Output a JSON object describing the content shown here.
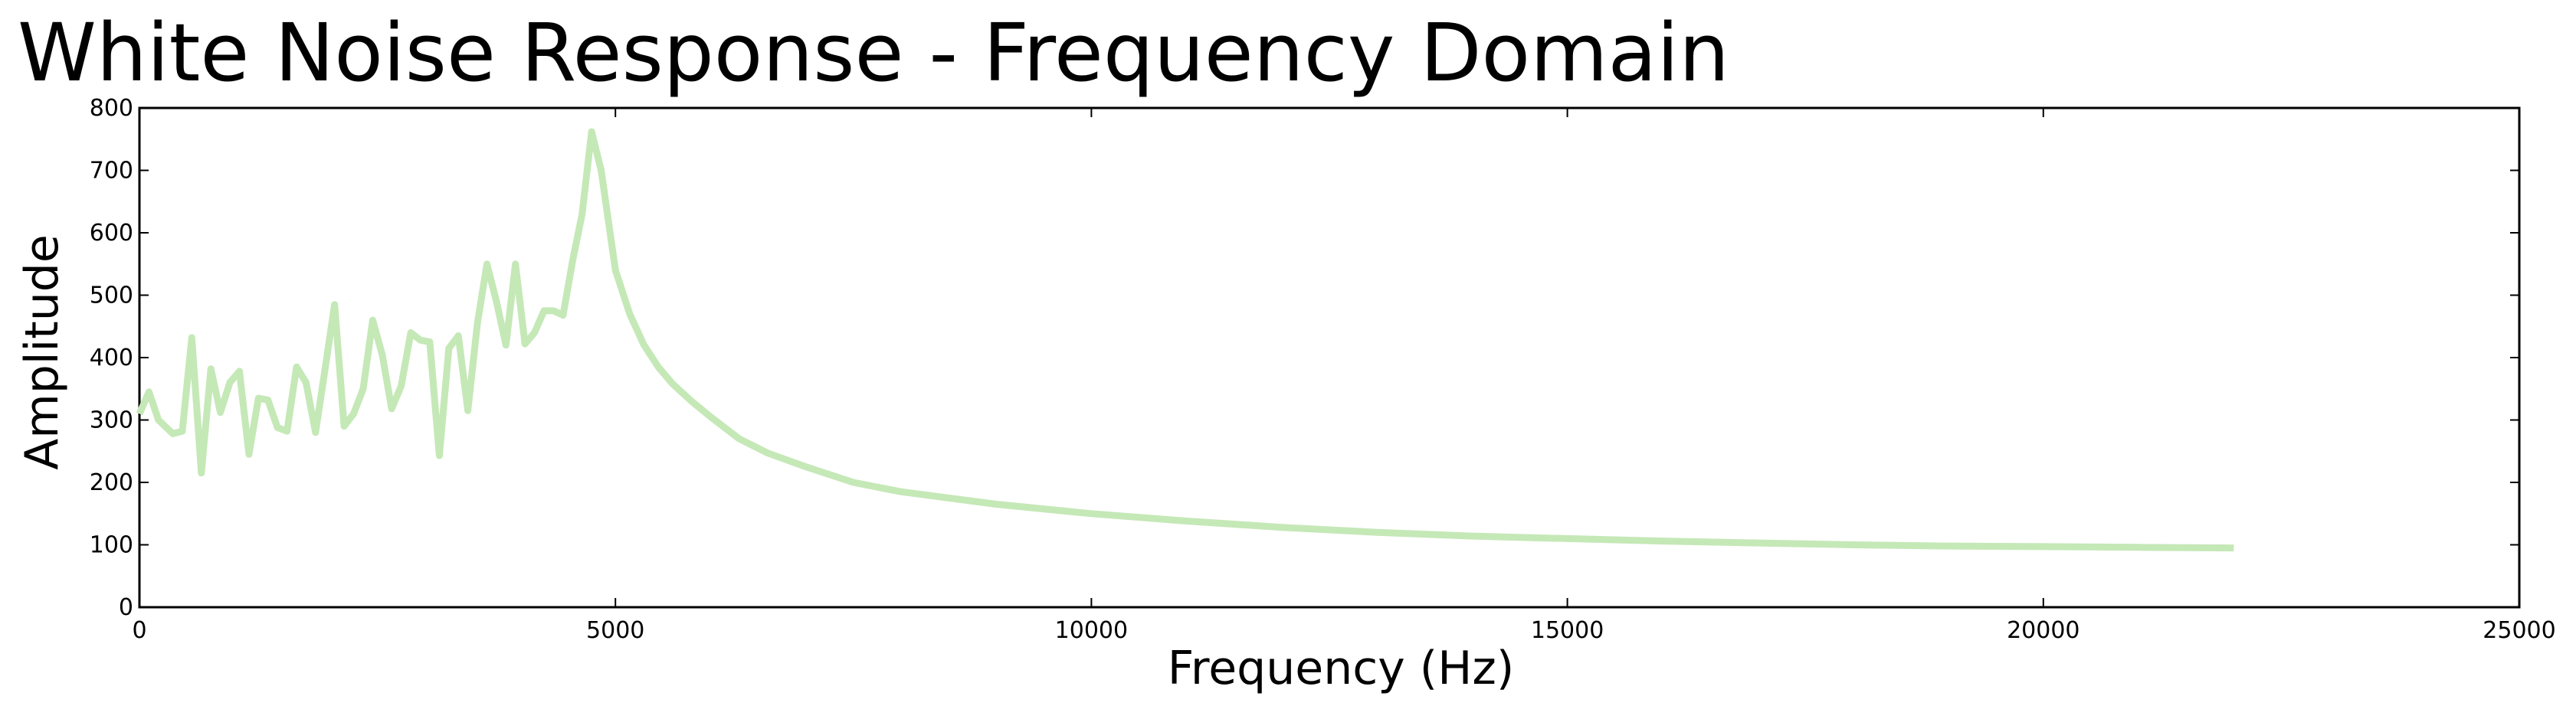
{
  "chart_data": {
    "type": "line",
    "title": "White Noise Response - Frequency Domain",
    "xlabel": "Frequency (Hz)",
    "ylabel": "Amplitude",
    "xlim": [
      0,
      25000
    ],
    "ylim": [
      0,
      800
    ],
    "xticks": [
      0,
      5000,
      10000,
      15000,
      20000,
      25000
    ],
    "xtick_labels": [
      "0",
      "5000",
      "10000",
      "15000",
      "20000",
      "25000"
    ],
    "yticks": [
      0,
      100,
      200,
      300,
      400,
      500,
      600,
      700,
      800
    ],
    "ytick_labels": [
      "0",
      "100",
      "200",
      "300",
      "400",
      "500",
      "600",
      "700",
      "800"
    ],
    "grid": false,
    "line_color": "#c5e8b7",
    "series": [
      {
        "name": "",
        "x": [
          0,
          100,
          200,
          350,
          450,
          550,
          650,
          750,
          850,
          950,
          1050,
          1150,
          1250,
          1350,
          1450,
          1550,
          1650,
          1750,
          1850,
          1950,
          2050,
          2150,
          2250,
          2350,
          2450,
          2550,
          2650,
          2750,
          2850,
          2950,
          3050,
          3150,
          3250,
          3350,
          3450,
          3550,
          3650,
          3750,
          3850,
          3950,
          4050,
          4150,
          4250,
          4350,
          4450,
          4550,
          4650,
          4750,
          4850,
          5000,
          5150,
          5300,
          5450,
          5600,
          5800,
          6000,
          6300,
          6600,
          7000,
          7500,
          8000,
          9000,
          10000,
          11000,
          12000,
          13000,
          14000,
          15000,
          16000,
          17000,
          18000,
          19000,
          20000,
          21000,
          22000
        ],
        "y": [
          310,
          345,
          300,
          278,
          282,
          432,
          215,
          382,
          312,
          360,
          378,
          245,
          335,
          332,
          288,
          282,
          385,
          360,
          280,
          382,
          485,
          290,
          310,
          350,
          460,
          405,
          318,
          355,
          440,
          428,
          425,
          243,
          415,
          435,
          315,
          455,
          550,
          490,
          420,
          550,
          422,
          440,
          475,
          475,
          468,
          555,
          630,
          762,
          700,
          540,
          470,
          420,
          385,
          358,
          330,
          305,
          270,
          247,
          225,
          200,
          185,
          165,
          150,
          138,
          128,
          120,
          114,
          110,
          106,
          103,
          100,
          98,
          97,
          96,
          95
        ]
      }
    ]
  }
}
